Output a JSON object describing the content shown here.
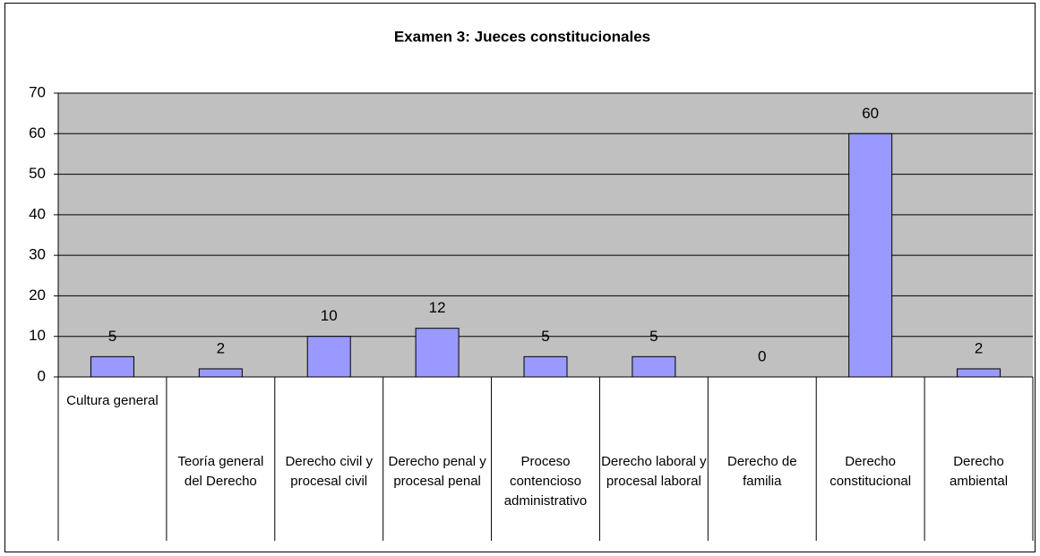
{
  "chart_data": {
    "type": "bar",
    "title": "Examen 3: Jueces constitucionales",
    "categories": [
      "Cultura general",
      "Teoría general del Derecho",
      "Derecho civil y procesal civil",
      "Derecho penal y procesal penal",
      "Proceso contencioso administrativo",
      "Derecho laboral y procesal laboral",
      "Derecho de familia",
      "Derecho constitucional",
      "Derecho ambiental"
    ],
    "values": [
      5,
      2,
      10,
      12,
      5,
      5,
      0,
      60,
      2
    ],
    "color": "#9999ff",
    "ylim": [
      0,
      70
    ],
    "yticks": [
      0,
      10,
      20,
      30,
      40,
      50,
      60,
      70
    ],
    "grid": true
  }
}
